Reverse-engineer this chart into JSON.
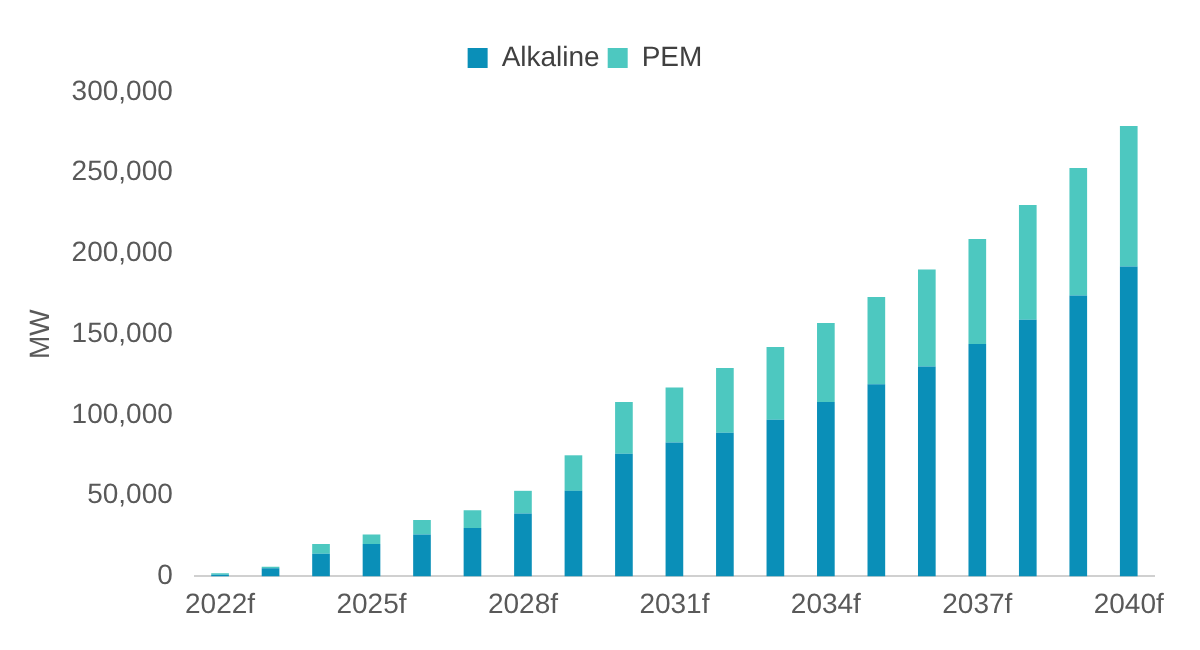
{
  "chart_data": {
    "type": "bar",
    "stacked": true,
    "ylabel": "MW",
    "categories": [
      "2022f",
      null,
      null,
      "2025f",
      null,
      null,
      "2028f",
      null,
      null,
      "2031f",
      null,
      null,
      "2034f",
      null,
      null,
      "2037f",
      null,
      null,
      "2040f"
    ],
    "series": [
      {
        "name": "Alkaline",
        "color": "#0a8fb8",
        "values": [
          1000,
          5000,
          14000,
          20000,
          26000,
          30000,
          39000,
          53000,
          76000,
          83000,
          89000,
          97000,
          108000,
          119000,
          130000,
          144000,
          159000,
          174000,
          192000
        ]
      },
      {
        "name": "PEM",
        "color": "#4dc8c0",
        "values": [
          1000,
          1000,
          6000,
          6000,
          9000,
          11000,
          14000,
          22000,
          32000,
          34000,
          40000,
          45000,
          49000,
          54000,
          60000,
          65000,
          71000,
          79000,
          87000
        ]
      }
    ],
    "ylim": [
      0,
      300000
    ],
    "yticks": [
      0,
      {
        "value": 50000,
        "label": "50,000"
      },
      {
        "value": 100000,
        "label": "100,000"
      },
      {
        "value": 150000,
        "label": "150,000"
      },
      {
        "value": 200000,
        "label": "200,000"
      },
      {
        "value": 250000,
        "label": "250,000"
      },
      {
        "value": 300000,
        "label": "300,000"
      }
    ],
    "grid": false,
    "legend": "top"
  }
}
